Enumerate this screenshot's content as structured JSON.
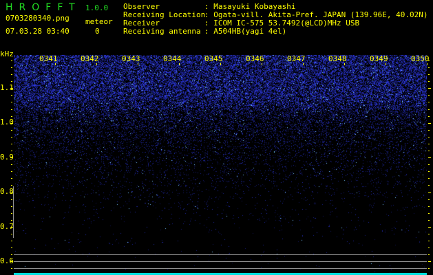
{
  "app": {
    "title": "HROFFT",
    "version": "1.0.0"
  },
  "file": {
    "name": "0703280340.png",
    "datetime": "07.03.28 03:40"
  },
  "meteor": {
    "label": "meteor",
    "count": "0"
  },
  "info": [
    {
      "label": "Observer",
      "value": ": Masayuki Kobayashi"
    },
    {
      "label": "Receiving Location",
      "value": ": Ogata-vill. Akita-Pref. JAPAN (139.96E, 40.02N)"
    },
    {
      "label": "Receiver",
      "value": ": ICOM IC-575 53.7492(@LCD)MHz USB"
    },
    {
      "label": "Receiving antenna",
      "value": ": A504HB(yagi 4el)"
    }
  ],
  "axis": {
    "unit": "kHz",
    "time_labels": [
      "0341",
      "0342",
      "0343",
      "0344",
      "0345",
      "0346",
      "0347",
      "0348",
      "0349",
      "0350"
    ],
    "freq_labels": [
      "1.1",
      "1.0",
      "0.9",
      "0.8",
      "0.7",
      "0.6"
    ]
  },
  "colors": {
    "noise": "#2233ff",
    "text": "#ffff00",
    "title": "#22dd22",
    "marker": "#00dddd"
  }
}
